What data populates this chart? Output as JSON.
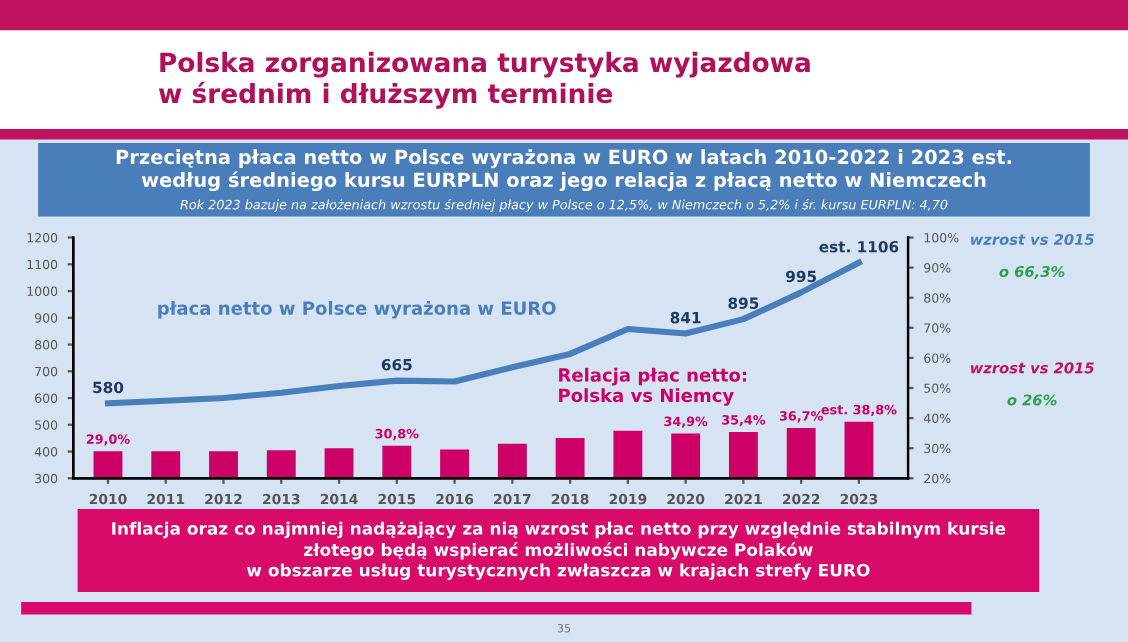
{
  "chart_data": {
    "type": "bar",
    "title": "Polska zorganizowana turystyka wyjazdowa\nw średnim i dłuższym terminie",
    "subtitle": "Przeciętna płaca netto w Polsce wyrażona w EURO w latach 2010-2022 i 2023 est.\nwedług średniego kursu EURPLN oraz jego relacja z płacą netto w Niemczech\nRok 2023 bazuje na założeniach wzrostu średniej płacy w Polsce o 12,5%, w Niemczech o 5,2% i śr. kursu EURPLN: 4,70",
    "categories": [
      "2010",
      "2011",
      "2012",
      "2013",
      "2014",
      "2015",
      "2016",
      "2017",
      "2018",
      "2019",
      "2020",
      "2021",
      "2022",
      "2023"
    ],
    "series": [
      {
        "name": "Relacja płac netto:\nPolska vs Niemcy",
        "axis": "y2",
        "color": "#cc0066",
        "values": [
          29.0,
          29.0,
          29.0,
          29.3,
          30.0,
          30.8,
          29.6,
          31.5,
          33.4,
          35.8,
          34.9,
          35.4,
          36.7,
          38.8
        ],
        "value_labels": [
          "29,0%",
          null,
          null,
          null,
          null,
          "30,8%",
          null,
          null,
          null,
          null,
          "34,9%",
          "35,4%",
          "36,7%",
          "est. 38,8%"
        ]
      },
      {
        "name": "płaca netto w Polsce wyrażona w EURO",
        "type": "line",
        "color": "#4a7ebb",
        "values": [
          580,
          590,
          600,
          620,
          645,
          665,
          662,
          715,
          765,
          858,
          841,
          895,
          995,
          1106
        ],
        "value_labels": [
          "580",
          null,
          null,
          null,
          null,
          "665",
          null,
          null,
          null,
          null,
          "841",
          "895",
          "995",
          "est. 1106"
        ]
      }
    ],
    "ylim": [
      300,
      1200
    ],
    "yticks": [
      300,
      400,
      500,
      600,
      700,
      800,
      900,
      1000,
      1100,
      1200
    ],
    "y2lim": [
      20,
      100
    ],
    "y2ticks": [
      {
        "value": 20,
        "label": "20%"
      },
      {
        "value": 30,
        "label": "30%"
      },
      {
        "value": 40,
        "label": "40%"
      },
      {
        "value": 50,
        "label": "50%"
      },
      {
        "value": 60,
        "label": "60%"
      },
      {
        "value": 70,
        "label": "70%"
      },
      {
        "value": 80,
        "label": "80%"
      },
      {
        "value": 90,
        "label": "90%"
      },
      {
        "value": 100,
        "label": "100%"
      }
    ],
    "grid": false,
    "legend": false,
    "annotations": [
      "wzrost vs 2015\no 66,3%",
      "wzrost vs 2015\no 26%",
      "Inflacja oraz co najmniej nadążający za nią wzrost płac netto przy względnie stabilnym kursie\nzłotego będą wspierać możliwości nabywcze Polaków\nw obszarze usług turystycznych zwłaszcza w krajach strefy EURO",
      "35"
    ]
  }
}
